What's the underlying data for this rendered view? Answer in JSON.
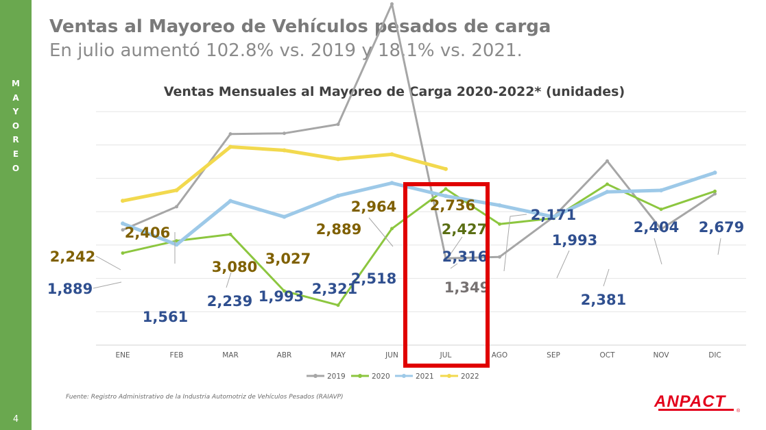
{
  "sidebar": {
    "word": "MAYOREO",
    "page_number": "4"
  },
  "header": {
    "title": "Ventas al Mayoreo de Vehículos pesados de carga",
    "subtitle": "En julio aumentó 102.8% vs. 2019 y 18.1% vs. 2021."
  },
  "chart_data": {
    "type": "line",
    "title": "Ventas Mensuales al Mayoreo de Carga 2020-2022* (unidades)",
    "xlabel": "",
    "ylabel": "",
    "categories": [
      "ENE",
      "FEB",
      "MAR",
      "ABR",
      "MAY",
      "JUN",
      "JUL",
      "AGO",
      "SEP",
      "OCT",
      "NOV",
      "DIC"
    ],
    "ylim": [
      0,
      4000
    ],
    "y_axis_labels_shown": false,
    "grid": true,
    "legend_position": "bottom",
    "series": [
      {
        "name": "2019",
        "color": "#a6a6a6",
        "values": [
          1790,
          2150,
          3280,
          3290,
          3430,
          5300,
          1349,
          1370,
          1990,
          2860,
          1800,
          2350
        ]
      },
      {
        "name": "2020",
        "color": "#8cc63f",
        "values": [
          1430,
          1620,
          1720,
          840,
          620,
          1810,
          2427,
          1880,
          1970,
          2500,
          2110,
          2390
        ]
      },
      {
        "name": "2021",
        "color": "#9dc9e8",
        "values": [
          1889,
          1561,
          2239,
          1993,
          2321,
          2518,
          2316,
          2171,
          1993,
          2381,
          2404,
          2679
        ]
      },
      {
        "name": "2022",
        "color": "#f2d94e",
        "values": [
          2242,
          2406,
          3080,
          3027,
          2889,
          2964,
          2736,
          null,
          null,
          null,
          null,
          null
        ]
      }
    ],
    "data_labels": [
      {
        "text": "2,242",
        "series": "2022",
        "color": "#7f6000"
      },
      {
        "text": "2,406",
        "series": "2022",
        "color": "#7f6000"
      },
      {
        "text": "3,080",
        "series": "2022",
        "color": "#7f6000"
      },
      {
        "text": "3,027",
        "series": "2022",
        "color": "#7f6000"
      },
      {
        "text": "2,889",
        "series": "2022",
        "color": "#7f6000"
      },
      {
        "text": "2,964",
        "series": "2022",
        "color": "#7f6000"
      },
      {
        "text": "2,736",
        "series": "2022",
        "color": "#7f6000"
      },
      {
        "text": "2,427",
        "series": "2020",
        "color": "#5a6e14"
      },
      {
        "text": "1,349",
        "series": "2019",
        "color": "#767171"
      },
      {
        "text": "1,889",
        "series": "2021",
        "color": "#2f4f8f"
      },
      {
        "text": "1,561",
        "series": "2021",
        "color": "#2f4f8f"
      },
      {
        "text": "2,239",
        "series": "2021",
        "color": "#2f4f8f"
      },
      {
        "text": "1,993",
        "series": "2021",
        "color": "#2f4f8f"
      },
      {
        "text": "2,321",
        "series": "2021",
        "color": "#2f4f8f"
      },
      {
        "text": "2,518",
        "series": "2021",
        "color": "#2f4f8f"
      },
      {
        "text": "2,316",
        "series": "2021",
        "color": "#2f4f8f"
      },
      {
        "text": "2,171",
        "series": "2021",
        "color": "#2f4f8f"
      },
      {
        "text": "1,993",
        "series": "2021",
        "color": "#2f4f8f"
      },
      {
        "text": "2,381",
        "series": "2021",
        "color": "#2f4f8f"
      },
      {
        "text": "2,404",
        "series": "2021",
        "color": "#2f4f8f"
      },
      {
        "text": "2,679",
        "series": "2021",
        "color": "#2f4f8f"
      }
    ],
    "highlight": {
      "category": "JUL",
      "color": "#e00000"
    }
  },
  "footer": {
    "source": "Fuente: Registro Administrativo de la Industria Automotriz de Vehículos Pesados (RAIAVP)",
    "logo_text": "ANPACT",
    "logo_color": "#e3001b"
  }
}
